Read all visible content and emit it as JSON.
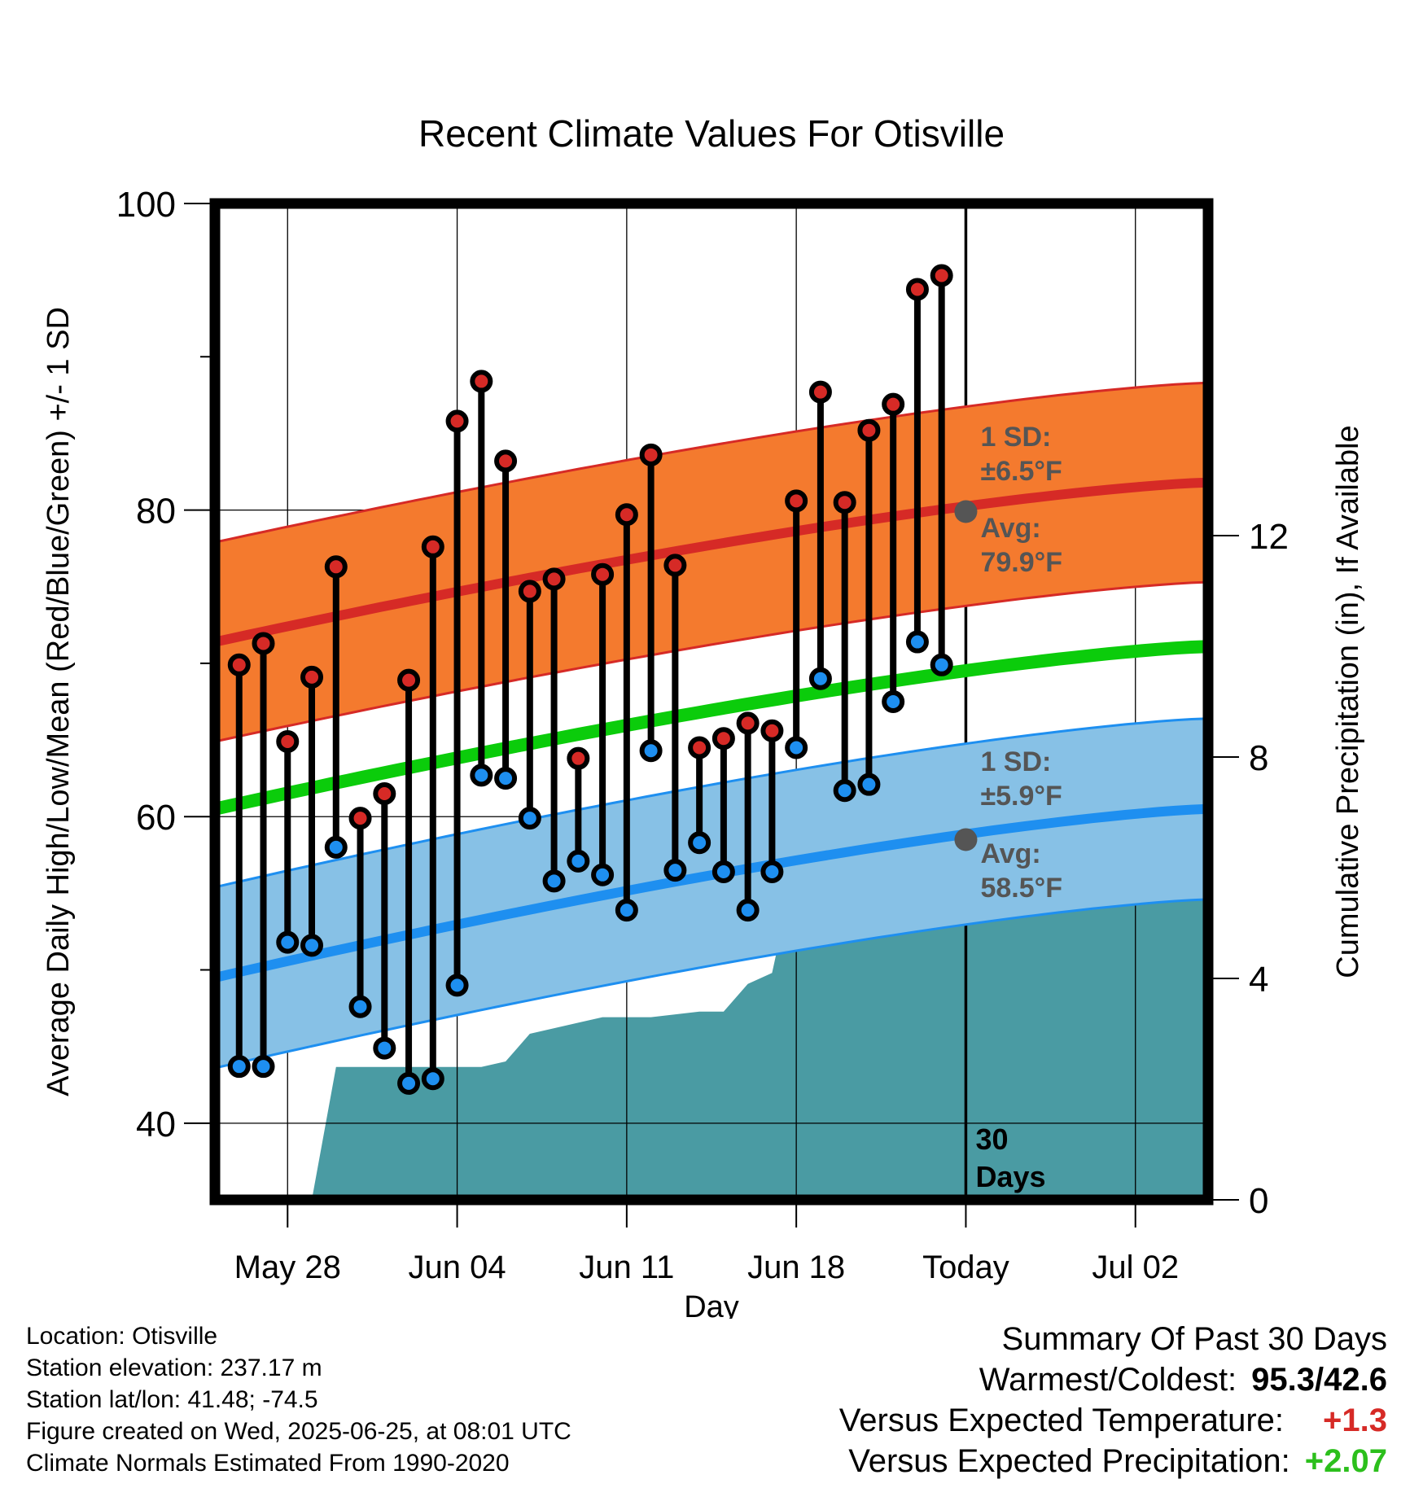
{
  "chart_data": {
    "type": "line",
    "title": "Recent Climate Values For Otisville",
    "xlabel": "Day",
    "ylabel": "Average Daily High/Low/Mean (Red/Blue/Green) +/- 1 SD",
    "y2label": "Cumulative Precipitation (in), If Available",
    "ylim": [
      35,
      100
    ],
    "y2lim": [
      0,
      18
    ],
    "yticks": [
      "40",
      "60",
      "80",
      "100"
    ],
    "y2ticks": [
      "0",
      "4",
      "8",
      "12"
    ],
    "xticks": [
      "May 28",
      "Jun 04",
      "Jun 11",
      "Jun 18",
      "Today",
      "Jul 02"
    ],
    "dates": [
      "2025-05-26",
      "2025-05-27",
      "2025-05-28",
      "2025-05-29",
      "2025-05-30",
      "2025-05-31",
      "2025-06-01",
      "2025-06-02",
      "2025-06-03",
      "2025-06-04",
      "2025-06-05",
      "2025-06-06",
      "2025-06-07",
      "2025-06-08",
      "2025-06-09",
      "2025-06-10",
      "2025-06-11",
      "2025-06-12",
      "2025-06-13",
      "2025-06-14",
      "2025-06-15",
      "2025-06-16",
      "2025-06-17",
      "2025-06-18",
      "2025-06-19",
      "2025-06-20",
      "2025-06-21",
      "2025-06-22",
      "2025-06-23",
      "2025-06-24"
    ],
    "highs": [
      69.9,
      71.3,
      64.9,
      69.1,
      76.3,
      59.9,
      61.5,
      68.9,
      77.6,
      85.8,
      88.4,
      83.2,
      74.7,
      75.5,
      63.8,
      75.8,
      79.7,
      83.6,
      76.4,
      64.5,
      65.1,
      66.1,
      65.6,
      80.6,
      87.7,
      80.5,
      85.2,
      86.9,
      94.4,
      95.3
    ],
    "lows": [
      43.7,
      43.7,
      51.8,
      51.6,
      58.0,
      47.6,
      44.9,
      42.6,
      42.9,
      49.0,
      62.7,
      62.5,
      59.9,
      55.8,
      57.1,
      56.2,
      53.9,
      64.3,
      56.5,
      58.3,
      56.4,
      53.9,
      56.4,
      64.5,
      69.0,
      61.7,
      62.1,
      67.5,
      71.4,
      69.9
    ],
    "normal_band_dates": [
      "2025-05-25",
      "2025-07-05"
    ],
    "normal_high": [
      71.4,
      81.8
    ],
    "normal_high_sd": 6.5,
    "normal_low": [
      49.5,
      60.5
    ],
    "normal_low_sd": 5.9,
    "normal_mean": [
      60.5,
      71.1
    ],
    "precip_dates": [
      "2025-05-29",
      "2025-05-30",
      "2025-06-05",
      "2025-06-06",
      "2025-06-07",
      "2025-06-09",
      "2025-06-10",
      "2025-06-12",
      "2025-06-14",
      "2025-06-15",
      "2025-06-16",
      "2025-06-17",
      "2025-06-18",
      "2025-06-25",
      "2025-07-05"
    ],
    "precip_cumulative": [
      0.0,
      2.4,
      2.4,
      2.5,
      3.0,
      3.2,
      3.3,
      3.3,
      3.4,
      3.4,
      3.9,
      4.1,
      6.1,
      6.2,
      6.2
    ],
    "today_marker": {
      "date": "2025-06-25",
      "label_line1": "30",
      "label_line2": "Days"
    },
    "annotations": {
      "high_sd_line1": "1 SD:",
      "high_sd_line2": "±6.5°F",
      "high_avg_line1": "Avg:",
      "high_avg_line2": "79.9°F",
      "low_sd_line1": "1 SD:",
      "low_sd_line2": "±5.9°F",
      "low_avg_line1": "Avg:",
      "low_avg_line2": "58.5°F",
      "today_high_avg": 79.9,
      "today_low_avg": 58.5
    },
    "colors": {
      "high_band": "#f47a2e",
      "high_line": "#d62a26",
      "low_band": "#87c1e6",
      "low_line": "#1e8ff0",
      "mean_line": "#0bcc0b",
      "precip": "#4a9ba3",
      "high_dot": "#d62a26",
      "low_dot": "#1e8ff0",
      "annotation": "#555555"
    }
  },
  "footer": {
    "location": "Location: Otisville",
    "elevation": "Station elevation: 237.17 m",
    "latlon": "Station lat/lon: 41.48; -74.5",
    "created": "Figure created on Wed, 2025-06-25, at 08:01 UTC",
    "normals": "Climate Normals Estimated From 1990-2020"
  },
  "summary": {
    "title": "Summary Of Past 30 Days",
    "warmest_label": "Warmest/Coldest:",
    "warmest_value": "95.3/42.6",
    "temp_label": "Versus Expected Temperature:",
    "temp_value": "+1.3",
    "temp_color": "#d62a26",
    "precip_label": "Versus Expected Precipitation:",
    "precip_value": "+2.07",
    "precip_color": "#2cbf1c"
  }
}
